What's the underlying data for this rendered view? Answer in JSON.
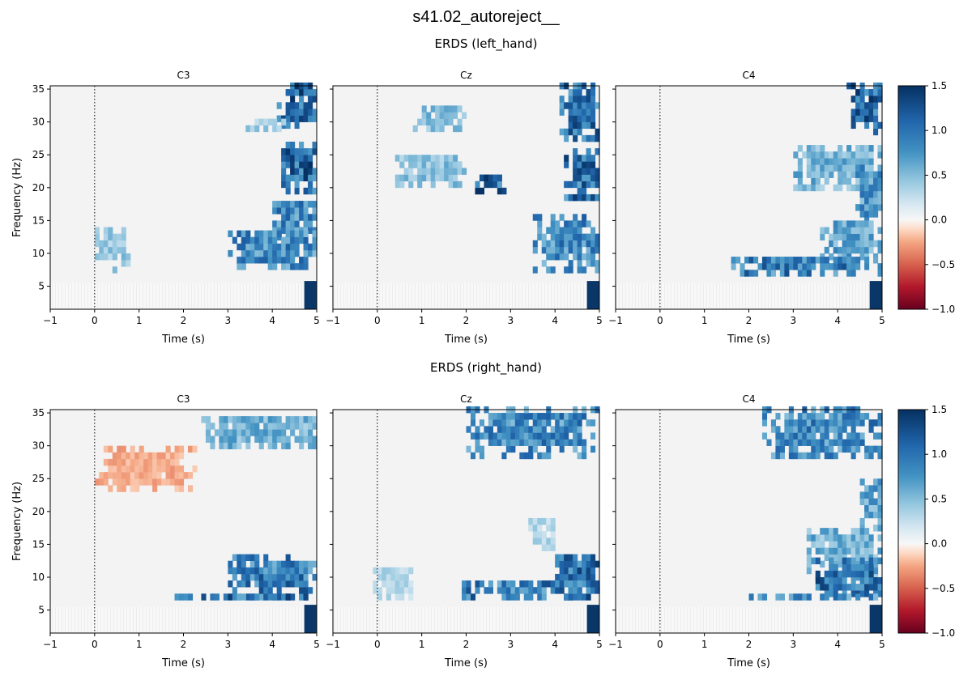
{
  "title": "s41.02_autoreject__",
  "colorbar": {
    "ticks": [
      -1.0,
      -0.5,
      0.0,
      0.5,
      1.0,
      1.5
    ],
    "tick_labels": [
      "−1.0",
      "−0.5",
      "0.0",
      "0.5",
      "1.0",
      "1.5"
    ],
    "colormap": "RdBu"
  },
  "chart_data": [
    {
      "type": "heatmap",
      "title": "ERDS (left_hand)",
      "xlabel": "Time (s)",
      "ylabel": "Frequency (Hz)",
      "xlim": [
        -1,
        5
      ],
      "ylim": [
        1.5,
        35.5
      ],
      "xticks": [
        "−1",
        "0",
        "1",
        "2",
        "3",
        "4",
        "5"
      ],
      "yticks": [
        "5",
        "10",
        "15",
        "20",
        "25",
        "30",
        "35"
      ],
      "clim": [
        -1.0,
        1.5
      ],
      "event_line_x": 0,
      "channels": [
        {
          "name": "C3",
          "blobs": [
            {
              "t": [
                4.3,
                5.0
              ],
              "f": [
                33.0,
                35.5
              ],
              "v": 1.3
            },
            {
              "t": [
                4.1,
                5.0
              ],
              "f": [
                29.0,
                33.0
              ],
              "v": 1.1
            },
            {
              "t": [
                3.4,
                4.3
              ],
              "f": [
                28.5,
                30.5
              ],
              "v": 0.4
            },
            {
              "t": [
                4.2,
                5.0
              ],
              "f": [
                19.0,
                27.0
              ],
              "v": 1.2
            },
            {
              "t": [
                4.0,
                5.0
              ],
              "f": [
                12.0,
                18.0
              ],
              "v": 0.9
            },
            {
              "t": [
                3.0,
                5.0
              ],
              "f": [
                7.5,
                13.5
              ],
              "v": 0.9
            },
            {
              "t": [
                0.0,
                0.8
              ],
              "f": [
                7.0,
                14.0
              ],
              "v": 0.45
            }
          ]
        },
        {
          "name": "Cz",
          "blobs": [
            {
              "t": [
                4.1,
                5.0
              ],
              "f": [
                27.0,
                35.5
              ],
              "v": 1.1
            },
            {
              "t": [
                0.8,
                2.0
              ],
              "f": [
                28.5,
                32.5
              ],
              "v": 0.55
            },
            {
              "t": [
                0.4,
                2.0
              ],
              "f": [
                20.0,
                25.0
              ],
              "v": 0.5
            },
            {
              "t": [
                2.2,
                2.9
              ],
              "f": [
                19.0,
                22.0
              ],
              "v": 1.2
            },
            {
              "t": [
                4.2,
                5.0
              ],
              "f": [
                18.0,
                26.0
              ],
              "v": 1.1
            },
            {
              "t": [
                3.5,
                5.0
              ],
              "f": [
                7.0,
                16.0
              ],
              "v": 0.9
            }
          ]
        },
        {
          "name": "C4",
          "blobs": [
            {
              "t": [
                4.2,
                5.0
              ],
              "f": [
                28.0,
                35.5
              ],
              "v": 1.2
            },
            {
              "t": [
                3.0,
                5.0
              ],
              "f": [
                19.5,
                26.5
              ],
              "v": 0.6
            },
            {
              "t": [
                4.4,
                5.0
              ],
              "f": [
                14.5,
                23.0
              ],
              "v": 0.8
            },
            {
              "t": [
                3.6,
                5.0
              ],
              "f": [
                9.0,
                15.0
              ],
              "v": 0.7
            },
            {
              "t": [
                1.6,
                5.0
              ],
              "f": [
                6.5,
                9.5
              ],
              "v": 1.0
            }
          ]
        }
      ]
    },
    {
      "type": "heatmap",
      "title": "ERDS (right_hand)",
      "xlabel": "Time (s)",
      "ylabel": "Frequency (Hz)",
      "xlim": [
        -1,
        5
      ],
      "ylim": [
        1.5,
        35.5
      ],
      "xticks": [
        "−1",
        "0",
        "1",
        "2",
        "3",
        "4",
        "5"
      ],
      "yticks": [
        "5",
        "10",
        "15",
        "20",
        "25",
        "30",
        "35"
      ],
      "clim": [
        -1.0,
        1.5
      ],
      "event_line_x": 0,
      "channels": [
        {
          "name": "C3",
          "blobs": [
            {
              "t": [
                2.4,
                5.0
              ],
              "f": [
                29.5,
                34.5
              ],
              "v": 0.6
            },
            {
              "t": [
                0.0,
                2.3
              ],
              "f": [
                23.0,
                29.5
              ],
              "v": -0.25
            },
            {
              "t": [
                3.0,
                5.0
              ],
              "f": [
                6.5,
                13.5
              ],
              "v": 1.0
            },
            {
              "t": [
                1.8,
                5.0
              ],
              "f": [
                6.5,
                7.5
              ],
              "v": 1.1
            }
          ]
        },
        {
          "name": "Cz",
          "blobs": [
            {
              "t": [
                2.0,
                5.0
              ],
              "f": [
                28.0,
                35.5
              ],
              "v": 0.9
            },
            {
              "t": [
                3.4,
                4.0
              ],
              "f": [
                14.0,
                19.0
              ],
              "v": 0.35
            },
            {
              "t": [
                4.0,
                5.0
              ],
              "f": [
                6.5,
                13.5
              ],
              "v": 1.1
            },
            {
              "t": [
                -0.1,
                0.8
              ],
              "f": [
                6.5,
                11.5
              ],
              "v": 0.35
            },
            {
              "t": [
                1.9,
                5.0
              ],
              "f": [
                6.5,
                9.0
              ],
              "v": 1.0
            }
          ]
        },
        {
          "name": "C4",
          "blobs": [
            {
              "t": [
                2.3,
                5.0
              ],
              "f": [
                28.0,
                35.5
              ],
              "v": 0.9
            },
            {
              "t": [
                4.5,
                5.0
              ],
              "f": [
                17.0,
                25.0
              ],
              "v": 0.7
            },
            {
              "t": [
                3.3,
                5.0
              ],
              "f": [
                9.5,
                17.0
              ],
              "v": 0.6
            },
            {
              "t": [
                3.4,
                5.0
              ],
              "f": [
                7.0,
                12.5
              ],
              "v": 1.1
            },
            {
              "t": [
                2.0,
                5.0
              ],
              "f": [
                6.5,
                7.5
              ],
              "v": 0.9
            }
          ]
        }
      ]
    }
  ]
}
